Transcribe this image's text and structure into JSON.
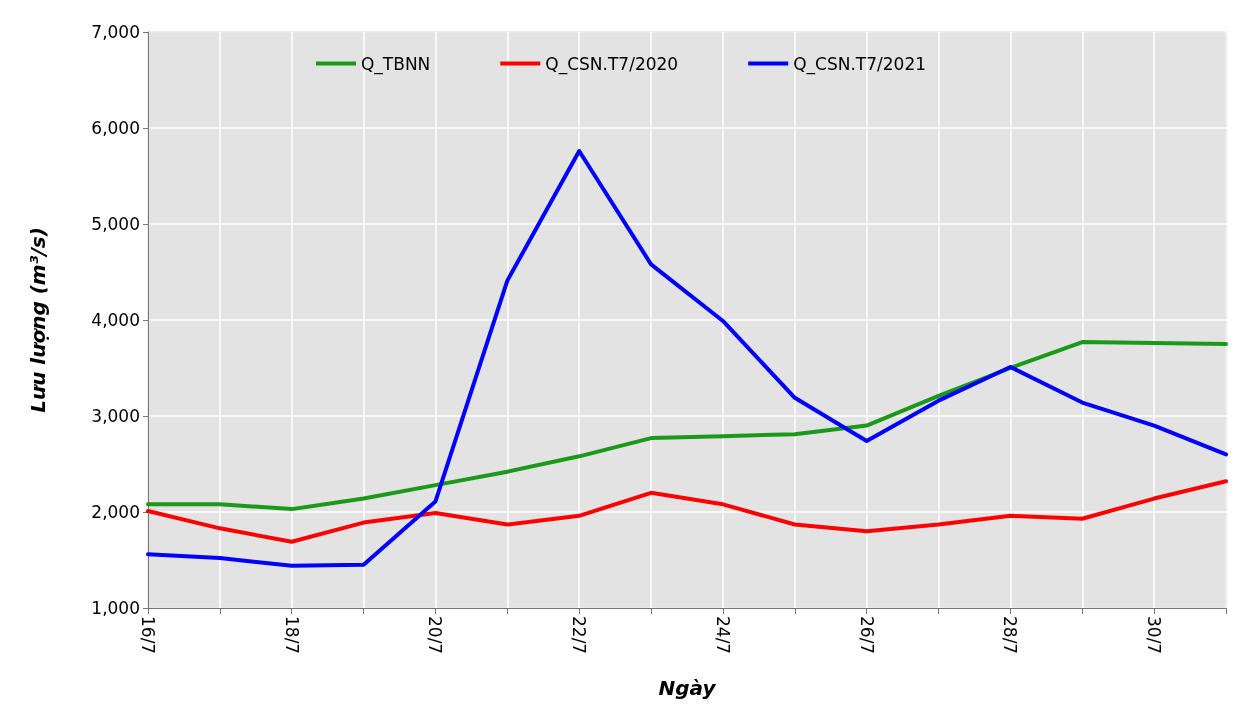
{
  "chart_data": {
    "type": "line",
    "xlabel": "Ngày",
    "ylabel": "Lưu lượng (m³/s)",
    "categories": [
      "16/7",
      null,
      "18/7",
      null,
      "20/7",
      null,
      "22/7",
      null,
      "24/7",
      null,
      "26/7",
      null,
      "28/7",
      null,
      "30/7",
      null
    ],
    "series": [
      {
        "name": "Q_TBNN",
        "color": "#1a9a1a",
        "values": [
          2080,
          2080,
          2030,
          2140,
          2280,
          2420,
          2580,
          2770,
          2790,
          2810,
          2900,
          3210,
          3500,
          3770,
          3760,
          3750
        ]
      },
      {
        "name": "Q_CSN.T7/2020",
        "color": "#ff0000",
        "values": [
          2010,
          1830,
          1690,
          1890,
          1990,
          1870,
          1960,
          2200,
          2080,
          1870,
          1800,
          1870,
          1960,
          1930,
          2140,
          2320
        ]
      },
      {
        "name": "Q_CSN.T7/2021",
        "color": "#0000ff",
        "values": [
          1560,
          1520,
          1440,
          1450,
          2110,
          4410,
          5760,
          4580,
          3990,
          3190,
          2740,
          3160,
          3510,
          3140,
          2900,
          2600
        ]
      }
    ],
    "ylim": [
      1000,
      7000
    ],
    "yticks": [
      {
        "value": 1000,
        "label": "1,000"
      },
      {
        "value": 2000,
        "label": "2,000"
      },
      {
        "value": 3000,
        "label": "3,000"
      },
      {
        "value": 4000,
        "label": "4,000"
      },
      {
        "value": 5000,
        "label": "5,000"
      },
      {
        "value": 6000,
        "label": "6,000"
      },
      {
        "value": 7000,
        "label": "7,000"
      }
    ],
    "grid": true,
    "legend": "top",
    "marker": "none",
    "line_style": "solid"
  }
}
